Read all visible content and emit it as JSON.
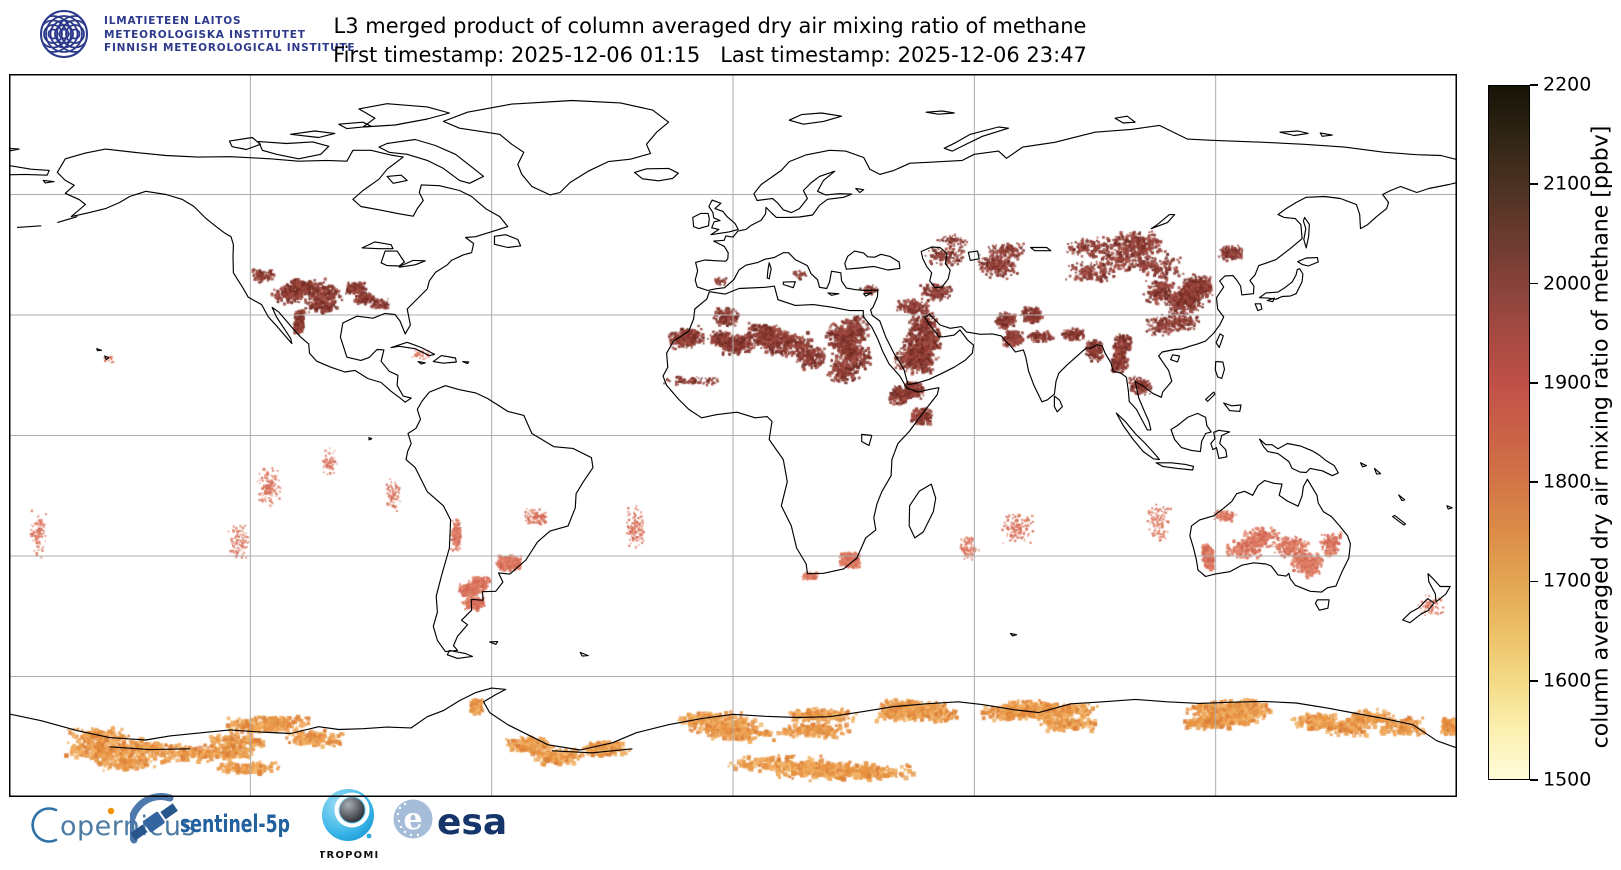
{
  "header": {
    "fmi_lines": [
      "ILMATIETEEN LAITOS",
      "METEOROLOGISKA INSTITUTET",
      "FINNISH METEOROLOGICAL INSTITUTE"
    ],
    "title": "L3 merged product of column averaged dry air mixing ratio of methane",
    "timestamps": "First timestamp: 2025-12-06 01:15   Last timestamp: 2025-12-06 23:47"
  },
  "map": {
    "projection": "equirectangular",
    "lon_range": [
      -180,
      180
    ],
    "lat_range": [
      -90,
      90
    ],
    "gridline_lons": [
      -120,
      -60,
      0,
      60,
      120
    ],
    "gridline_lats": [
      -60,
      -30,
      0,
      30,
      60
    ],
    "grid_color": "#ababab",
    "coast_color": "#000000",
    "background": "#ffffff",
    "palettes": {
      "dark": [
        "#8d3b33",
        "#7b3028",
        "#9a453d",
        "#a85247",
        "#6f2a23"
      ],
      "salmon": [
        "#d9715c",
        "#e07e66",
        "#cf6350",
        "#e28a70"
      ],
      "orange": [
        "#e8923f",
        "#f0a85a",
        "#dd8038",
        "#f2b469",
        "#e59a4d"
      ]
    },
    "regions": [
      {
        "name": "us-southwest",
        "c": [
          -106,
          33
        ],
        "r": [
          8,
          4.5
        ],
        "n": 700,
        "s": 2.3,
        "pal": "dark",
        "ppbv": 2000
      },
      {
        "name": "us-south-central",
        "c": [
          -95,
          34.5
        ],
        "r": [
          5,
          3
        ],
        "n": 260,
        "s": 2.1,
        "pal": "dark",
        "ppbv": 1980
      },
      {
        "name": "us-west-scatter",
        "c": [
          -112,
          38.5
        ],
        "r": [
          6,
          3.5
        ],
        "n": 130,
        "s": 1.9,
        "pal": "dark",
        "ppbv": 1950
      },
      {
        "name": "us-east-scatter",
        "c": [
          -86,
          34
        ],
        "r": [
          5,
          2.5
        ],
        "n": 90,
        "s": 1.9,
        "pal": "dark",
        "ppbv": 1950
      },
      {
        "name": "mexico-nw-coast",
        "c": [
          -109.5,
          26.5
        ],
        "r": [
          2.6,
          4
        ],
        "n": 220,
        "s": 2.3,
        "pal": "dark",
        "ppbv": 2000
      },
      {
        "name": "sahara-west",
        "c": [
          -8,
          21.5
        ],
        "r": [
          6.5,
          5
        ],
        "n": 420,
        "s": 2.3,
        "pal": "dark",
        "ppbv": 2000
      },
      {
        "name": "sahara-algeria",
        "c": [
          1.5,
          26.5
        ],
        "r": [
          6.5,
          4.5
        ],
        "n": 420,
        "s": 2.3,
        "pal": "dark",
        "ppbv": 2000
      },
      {
        "name": "sahara-libya-niger",
        "c": [
          13,
          23.5
        ],
        "r": [
          8,
          6
        ],
        "n": 700,
        "s": 2.5,
        "pal": "dark",
        "ppbv": 2050
      },
      {
        "name": "sahara-egypt-sudan",
        "c": [
          27,
          21.5
        ],
        "r": [
          8,
          6.5
        ],
        "n": 700,
        "s": 2.5,
        "pal": "dark",
        "ppbv": 2050
      },
      {
        "name": "sahel-scatter",
        "c": [
          1,
          14
        ],
        "r": [
          14,
          2.2
        ],
        "n": 110,
        "s": 1.8,
        "pal": "dark",
        "ppbv": 1950
      },
      {
        "name": "horn-of-africa",
        "c": [
          44,
          7.5
        ],
        "r": [
          5.5,
          4.5
        ],
        "n": 420,
        "s": 2.3,
        "pal": "dark",
        "ppbv": 2000
      },
      {
        "name": "arabia",
        "c": [
          47.5,
          22.5
        ],
        "r": [
          8,
          6
        ],
        "n": 800,
        "s": 2.5,
        "pal": "dark",
        "ppbv": 2050
      },
      {
        "name": "iraq-iran",
        "c": [
          51,
          32.5
        ],
        "r": [
          8,
          4
        ],
        "n": 300,
        "s": 2.1,
        "pal": "dark",
        "ppbv": 1980
      },
      {
        "name": "anatolia-scatter",
        "c": [
          33,
          38.5
        ],
        "r": [
          5,
          2.2
        ],
        "n": 60,
        "s": 1.7,
        "pal": "dark",
        "ppbv": 1950
      },
      {
        "name": "italy-balkans-scatter",
        "c": [
          16,
          41
        ],
        "r": [
          4,
          2.5
        ],
        "n": 40,
        "s": 1.7,
        "pal": "dark",
        "ppbv": 1950
      },
      {
        "name": "spain-scatter",
        "c": [
          -4.5,
          38.5
        ],
        "r": [
          3,
          2
        ],
        "n": 40,
        "s": 1.7,
        "pal": "dark",
        "ppbv": 1950
      },
      {
        "name": "central-asia",
        "c": [
          60,
          42.5
        ],
        "r": [
          10,
          5
        ],
        "n": 340,
        "s": 2.1,
        "pal": "dark",
        "ppbv": 1980
      },
      {
        "name": "kazakh-scatter",
        "c": [
          72,
          47
        ],
        "r": [
          9,
          4
        ],
        "n": 150,
        "s": 1.9,
        "pal": "dark",
        "ppbv": 1950
      },
      {
        "name": "russia-steppe-scatter",
        "c": [
          48,
          49
        ],
        "r": [
          8,
          3
        ],
        "n": 70,
        "s": 1.7,
        "pal": "dark",
        "ppbv": 1950
      },
      {
        "name": "gobi-mongolia",
        "c": [
          98,
          43.5
        ],
        "r": [
          13,
          5.5
        ],
        "n": 750,
        "s": 2.4,
        "pal": "dark",
        "ppbv": 2020
      },
      {
        "name": "north-china",
        "c": [
          113,
          36.5
        ],
        "r": [
          8,
          6
        ],
        "n": 700,
        "s": 2.4,
        "pal": "dark",
        "ppbv": 2050
      },
      {
        "name": "manchuria-amur",
        "c": [
          123,
          47
        ],
        "r": [
          6,
          3.5
        ],
        "n": 150,
        "s": 2,
        "pal": "dark",
        "ppbv": 1980
      },
      {
        "name": "south-china-scatter",
        "c": [
          108,
          27
        ],
        "r": [
          8,
          5
        ],
        "n": 260,
        "s": 2,
        "pal": "dark",
        "ppbv": 1980
      },
      {
        "name": "nw-india-pakistan",
        "c": [
          71.5,
          27.5
        ],
        "r": [
          5,
          4
        ],
        "n": 420,
        "s": 2.4,
        "pal": "dark",
        "ppbv": 2050
      },
      {
        "name": "ganges-plain",
        "c": [
          80,
          25
        ],
        "r": [
          6,
          3
        ],
        "n": 230,
        "s": 2.1,
        "pal": "dark",
        "ppbv": 2000
      },
      {
        "name": "bangladesh-myanmar",
        "c": [
          93.5,
          21.5
        ],
        "r": [
          4.5,
          5.5
        ],
        "n": 420,
        "s": 2.3,
        "pal": "dark",
        "ppbv": 2050
      },
      {
        "name": "se-asia-scatter",
        "c": [
          102,
          16.5
        ],
        "r": [
          6,
          4.5
        ],
        "n": 190,
        "s": 1.9,
        "pal": "dark",
        "ppbv": 1980
      },
      {
        "name": "australia-west-coast",
        "c": [
          116.5,
          -28.5
        ],
        "r": [
          2.2,
          5
        ],
        "n": 350,
        "s": 2.5,
        "pal": "salmon",
        "ppbv": 1870
      },
      {
        "name": "australia-center",
        "c": [
          132,
          -24.5
        ],
        "r": [
          9,
          5
        ],
        "n": 420,
        "s": 2.3,
        "pal": "salmon",
        "ppbv": 1850
      },
      {
        "name": "australia-east-inland",
        "c": [
          145,
          -28
        ],
        "r": [
          5.5,
          6
        ],
        "n": 380,
        "s": 2.3,
        "pal": "salmon",
        "ppbv": 1850
      },
      {
        "name": "australia-north-scatter",
        "c": [
          125,
          -19
        ],
        "r": [
          6,
          3
        ],
        "n": 90,
        "s": 1.9,
        "pal": "salmon",
        "ppbv": 1850
      },
      {
        "name": "argentina-pampas",
        "c": [
          -63.5,
          -39.5
        ],
        "r": [
          5.5,
          3.2
        ],
        "n": 400,
        "s": 2.5,
        "pal": "salmon",
        "ppbv": 1860
      },
      {
        "name": "andes-line",
        "c": [
          -67.5,
          -30
        ],
        "r": [
          2.5,
          8
        ],
        "n": 170,
        "s": 1.9,
        "pal": "salmon",
        "ppbv": 1850
      },
      {
        "name": "uruguay-s-brazil",
        "c": [
          -53.5,
          -31
        ],
        "r": [
          4,
          3.5
        ],
        "n": 240,
        "s": 2.3,
        "pal": "salmon",
        "ppbv": 1860
      },
      {
        "name": "brazil-scatter",
        "c": [
          -47,
          -21
        ],
        "r": [
          6,
          4
        ],
        "n": 90,
        "s": 1.8,
        "pal": "salmon",
        "ppbv": 1850
      },
      {
        "name": "south-africa-highveld",
        "c": [
          26.5,
          -29
        ],
        "r": [
          5,
          3.5
        ],
        "n": 250,
        "s": 2.2,
        "pal": "salmon",
        "ppbv": 1850
      },
      {
        "name": "south-africa-cape",
        "c": [
          20,
          -33.5
        ],
        "r": [
          4,
          2
        ],
        "n": 90,
        "s": 1.9,
        "pal": "salmon",
        "ppbv": 1850
      },
      {
        "name": "pacific-band-east",
        "c": [
          -112,
          -18
        ],
        "r": [
          6,
          10
        ],
        "n": 130,
        "s": 1.7,
        "pal": "salmon",
        "ppbv": 1840
      },
      {
        "name": "pacific-band-mid",
        "c": [
          -126,
          -27
        ],
        "r": [
          5,
          9
        ],
        "n": 90,
        "s": 1.7,
        "pal": "salmon",
        "ppbv": 1840
      },
      {
        "name": "pacific-band-north",
        "c": [
          -100,
          -9
        ],
        "r": [
          4,
          7
        ],
        "n": 70,
        "s": 1.7,
        "pal": "salmon",
        "ppbv": 1840
      },
      {
        "name": "pacific-left-edge",
        "c": [
          -176,
          -28
        ],
        "r": [
          4,
          12
        ],
        "n": 90,
        "s": 1.7,
        "pal": "salmon",
        "ppbv": 1840
      },
      {
        "name": "peru-coast-ocean",
        "c": [
          -86,
          -13
        ],
        "r": [
          3.5,
          8
        ],
        "n": 70,
        "s": 1.7,
        "pal": "salmon",
        "ppbv": 1840
      },
      {
        "name": "atlantic-band",
        "c": [
          -25,
          -23
        ],
        "r": [
          4.5,
          11
        ],
        "n": 120,
        "s": 1.7,
        "pal": "salmon",
        "ppbv": 1840
      },
      {
        "name": "indian-ocean-band",
        "c": [
          74,
          -27
        ],
        "r": [
          8,
          8
        ],
        "n": 130,
        "s": 1.7,
        "pal": "salmon",
        "ppbv": 1840
      },
      {
        "name": "indian-ocean-west",
        "c": [
          60,
          -24
        ],
        "r": [
          5,
          7
        ],
        "n": 80,
        "s": 1.7,
        "pal": "salmon",
        "ppbv": 1840
      },
      {
        "name": "west-australia-ocean",
        "c": [
          103,
          -27
        ],
        "r": [
          6,
          9
        ],
        "n": 110,
        "s": 1.7,
        "pal": "salmon",
        "ppbv": 1840
      },
      {
        "name": "tasman-nz",
        "c": [
          170,
          -40
        ],
        "r": [
          7,
          5
        ],
        "n": 60,
        "s": 1.7,
        "pal": "salmon",
        "ppbv": 1840
      },
      {
        "name": "hawaii-scatter",
        "c": [
          -156,
          20
        ],
        "r": [
          3,
          2
        ],
        "n": 18,
        "s": 1.5,
        "pal": "salmon",
        "ppbv": 1840
      },
      {
        "name": "caribbean-scatter",
        "c": [
          -73,
          20.5
        ],
        "r": [
          5,
          2.5
        ],
        "n": 40,
        "s": 1.5,
        "pal": "salmon",
        "ppbv": 1840
      },
      {
        "name": "antarctica-ross",
        "c": [
          -150,
          -76.5
        ],
        "r": [
          16,
          4.5
        ],
        "n": 700,
        "s": 3.2,
        "pal": "orange",
        "ppbv": 1720
      },
      {
        "name": "antarctica-west",
        "c": [
          -115,
          -74
        ],
        "r": [
          14,
          4
        ],
        "n": 550,
        "s": 3.2,
        "pal": "orange",
        "ppbv": 1720
      },
      {
        "name": "antarctica-peninsula",
        "c": [
          -62,
          -67
        ],
        "r": [
          3,
          3.5
        ],
        "n": 140,
        "s": 2.6,
        "pal": "orange",
        "ppbv": 1750
      },
      {
        "name": "antarctica-weddell",
        "c": [
          -40,
          -76
        ],
        "r": [
          12,
          4
        ],
        "n": 450,
        "s": 3.2,
        "pal": "orange",
        "ppbv": 1720
      },
      {
        "name": "antarctica-queen-maud",
        "c": [
          10,
          -71.5
        ],
        "r": [
          18,
          3.5
        ],
        "n": 700,
        "s": 3.2,
        "pal": "orange",
        "ppbv": 1720
      },
      {
        "name": "antarctica-enderby",
        "c": [
          45,
          -69
        ],
        "r": [
          12,
          3.2
        ],
        "n": 460,
        "s": 3,
        "pal": "orange",
        "ppbv": 1720
      },
      {
        "name": "antarctica-wilkes-west",
        "c": [
          80,
          -69.5
        ],
        "r": [
          14,
          3.5
        ],
        "n": 620,
        "s": 3.2,
        "pal": "orange",
        "ppbv": 1720
      },
      {
        "name": "antarctica-wilkes-east",
        "c": [
          120,
          -68.5
        ],
        "r": [
          14,
          3.5
        ],
        "n": 620,
        "s": 3.2,
        "pal": "orange",
        "ppbv": 1720
      },
      {
        "name": "antarctica-victoria",
        "c": [
          155,
          -72
        ],
        "r": [
          12,
          4.5
        ],
        "n": 460,
        "s": 3.2,
        "pal": "orange",
        "ppbv": 1720
      },
      {
        "name": "antarctica-far-east",
        "c": [
          175,
          -74.5
        ],
        "r": [
          5,
          4
        ],
        "n": 160,
        "s": 3,
        "pal": "orange",
        "ppbv": 1720
      },
      {
        "name": "antarctica-interior",
        "c": [
          20,
          -81
        ],
        "r": [
          25,
          4
        ],
        "n": 520,
        "s": 3.4,
        "pal": "orange",
        "ppbv": 1700
      },
      {
        "name": "antarctica-interior-west",
        "c": [
          -120,
          -79.5
        ],
        "r": [
          15,
          3
        ],
        "n": 240,
        "s": 3.2,
        "pal": "orange",
        "ppbv": 1700
      }
    ]
  },
  "colorbar": {
    "label": "column averaged dry air mixing ratio of methane [ppbv]",
    "unit": "ppbv",
    "min": 1500,
    "max": 2200,
    "ticks": [
      2200,
      2100,
      2000,
      1900,
      1800,
      1700,
      1600,
      1500
    ],
    "gradient_stops": [
      [
        1500,
        "#fffcd9"
      ],
      [
        1550,
        "#fbf0b0"
      ],
      [
        1600,
        "#f3d985"
      ],
      [
        1650,
        "#ecbf66"
      ],
      [
        1700,
        "#e3a452"
      ],
      [
        1750,
        "#db8c48"
      ],
      [
        1800,
        "#d27546"
      ],
      [
        1850,
        "#ca6147"
      ],
      [
        1900,
        "#bf5048"
      ],
      [
        1950,
        "#a54a42"
      ],
      [
        2000,
        "#87423a"
      ],
      [
        2050,
        "#693a2e"
      ],
      [
        2100,
        "#4b3122"
      ],
      [
        2150,
        "#2f2414"
      ],
      [
        2200,
        "#171307"
      ]
    ]
  },
  "footer": {
    "copernicus_text": "opernicus",
    "sentinel_text": "sentinel-5p",
    "tropomi_caption": "TROPOMI",
    "esa_text": "esa",
    "esa_emblem_letter": "e"
  }
}
